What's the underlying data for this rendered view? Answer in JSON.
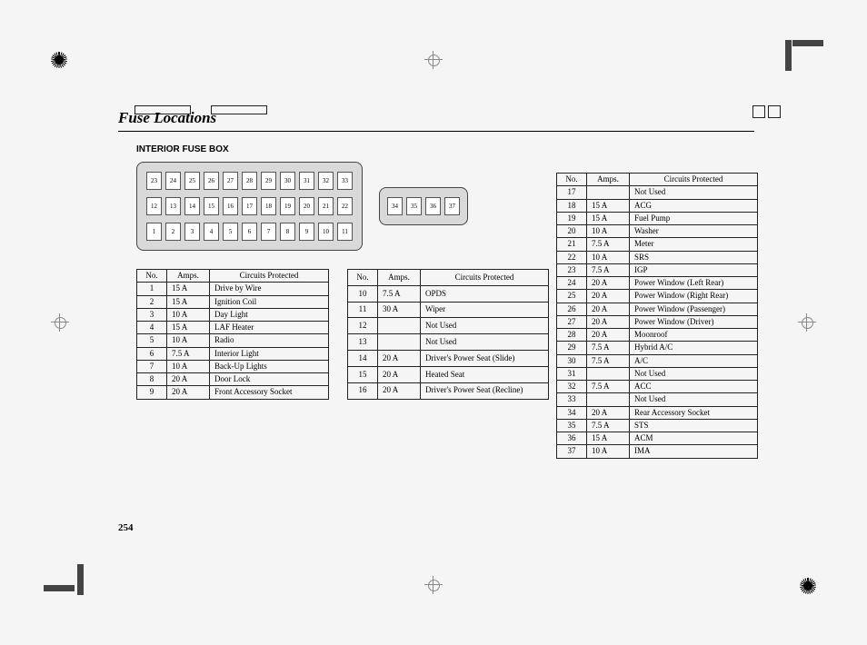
{
  "title": "Fuse Locations",
  "subtitle": "INTERIOR FUSE BOX",
  "page_number": "254",
  "colors": {
    "page_bg": "#f5f5f5",
    "box_bg": "#d9d9d9",
    "rule": "#000000",
    "text": "#000000"
  },
  "fuse_diagram": {
    "main_rows": [
      [
        "23",
        "24",
        "25",
        "26",
        "27",
        "28",
        "29",
        "30",
        "31",
        "32",
        "33"
      ],
      [
        "12",
        "13",
        "14",
        "15",
        "16",
        "17",
        "18",
        "19",
        "20",
        "21",
        "22"
      ],
      [
        "1",
        "2",
        "3",
        "4",
        "5",
        "6",
        "7",
        "8",
        "9",
        "10",
        "11"
      ]
    ],
    "side_row": [
      "34",
      "35",
      "36",
      "37"
    ]
  },
  "headers": {
    "no": "No.",
    "amps": "Amps.",
    "circuits": "Circuits Protected"
  },
  "table1": [
    {
      "no": "1",
      "amps": "15 A",
      "circ": "Drive by Wire"
    },
    {
      "no": "2",
      "amps": "15 A",
      "circ": "Ignition  Coil"
    },
    {
      "no": "3",
      "amps": "10 A",
      "circ": "Day Light"
    },
    {
      "no": "4",
      "amps": "15 A",
      "circ": "LAF Heater"
    },
    {
      "no": "5",
      "amps": "10 A",
      "circ": "Radio"
    },
    {
      "no": "6",
      "amps": "7.5 A",
      "circ": "Interior Light"
    },
    {
      "no": "7",
      "amps": "10 A",
      "circ": "Back-Up Lights"
    },
    {
      "no": "8",
      "amps": "20 A",
      "circ": "Door Lock"
    },
    {
      "no": "9",
      "amps": "20 A",
      "circ": "Front Accessory Socket"
    }
  ],
  "table2": [
    {
      "no": "10",
      "amps": "7.5 A",
      "circ": "OPDS"
    },
    {
      "no": "11",
      "amps": "30 A",
      "circ": "Wiper"
    },
    {
      "no": "12",
      "amps": "",
      "circ": "Not Used"
    },
    {
      "no": "13",
      "amps": "",
      "circ": "Not Used"
    },
    {
      "no": "14",
      "amps": "20 A",
      "circ": "Driver's Power Seat (Slide)"
    },
    {
      "no": "15",
      "amps": "20 A",
      "circ": "Heated Seat"
    },
    {
      "no": "16",
      "amps": "20 A",
      "circ": "Driver's Power Seat (Recline)"
    }
  ],
  "table3": [
    {
      "no": "17",
      "amps": "",
      "circ": "Not Used"
    },
    {
      "no": "18",
      "amps": "15 A",
      "circ": "ACG"
    },
    {
      "no": "19",
      "amps": "15 A",
      "circ": "Fuel Pump"
    },
    {
      "no": "20",
      "amps": "10 A",
      "circ": "Washer"
    },
    {
      "no": "21",
      "amps": "7.5 A",
      "circ": "Meter"
    },
    {
      "no": "22",
      "amps": "10 A",
      "circ": "SRS"
    },
    {
      "no": "23",
      "amps": "7.5 A",
      "circ": "IGP"
    },
    {
      "no": "24",
      "amps": "20 A",
      "circ": "Power Window (Left Rear)"
    },
    {
      "no": "25",
      "amps": "20 A",
      "circ": "Power Window (Right Rear)"
    },
    {
      "no": "26",
      "amps": "20 A",
      "circ": "Power Window (Passenger)"
    },
    {
      "no": "27",
      "amps": "20 A",
      "circ": "Power Window (Driver)"
    },
    {
      "no": "28",
      "amps": "20 A",
      "circ": "Moonroof"
    },
    {
      "no": "29",
      "amps": "7.5 A",
      "circ": "Hybrid A/C"
    },
    {
      "no": "30",
      "amps": "7.5 A",
      "circ": "A/C"
    },
    {
      "no": "31",
      "amps": "",
      "circ": "Not Used"
    },
    {
      "no": "32",
      "amps": "7.5 A",
      "circ": "ACC"
    },
    {
      "no": "33",
      "amps": "",
      "circ": "Not Used"
    },
    {
      "no": "34",
      "amps": "20 A",
      "circ": "Rear Accessory Socket"
    },
    {
      "no": "35",
      "amps": "7.5 A",
      "circ": "STS"
    },
    {
      "no": "36",
      "amps": "15 A",
      "circ": "ACM"
    },
    {
      "no": "37",
      "amps": "10 A",
      "circ": "IMA"
    }
  ]
}
